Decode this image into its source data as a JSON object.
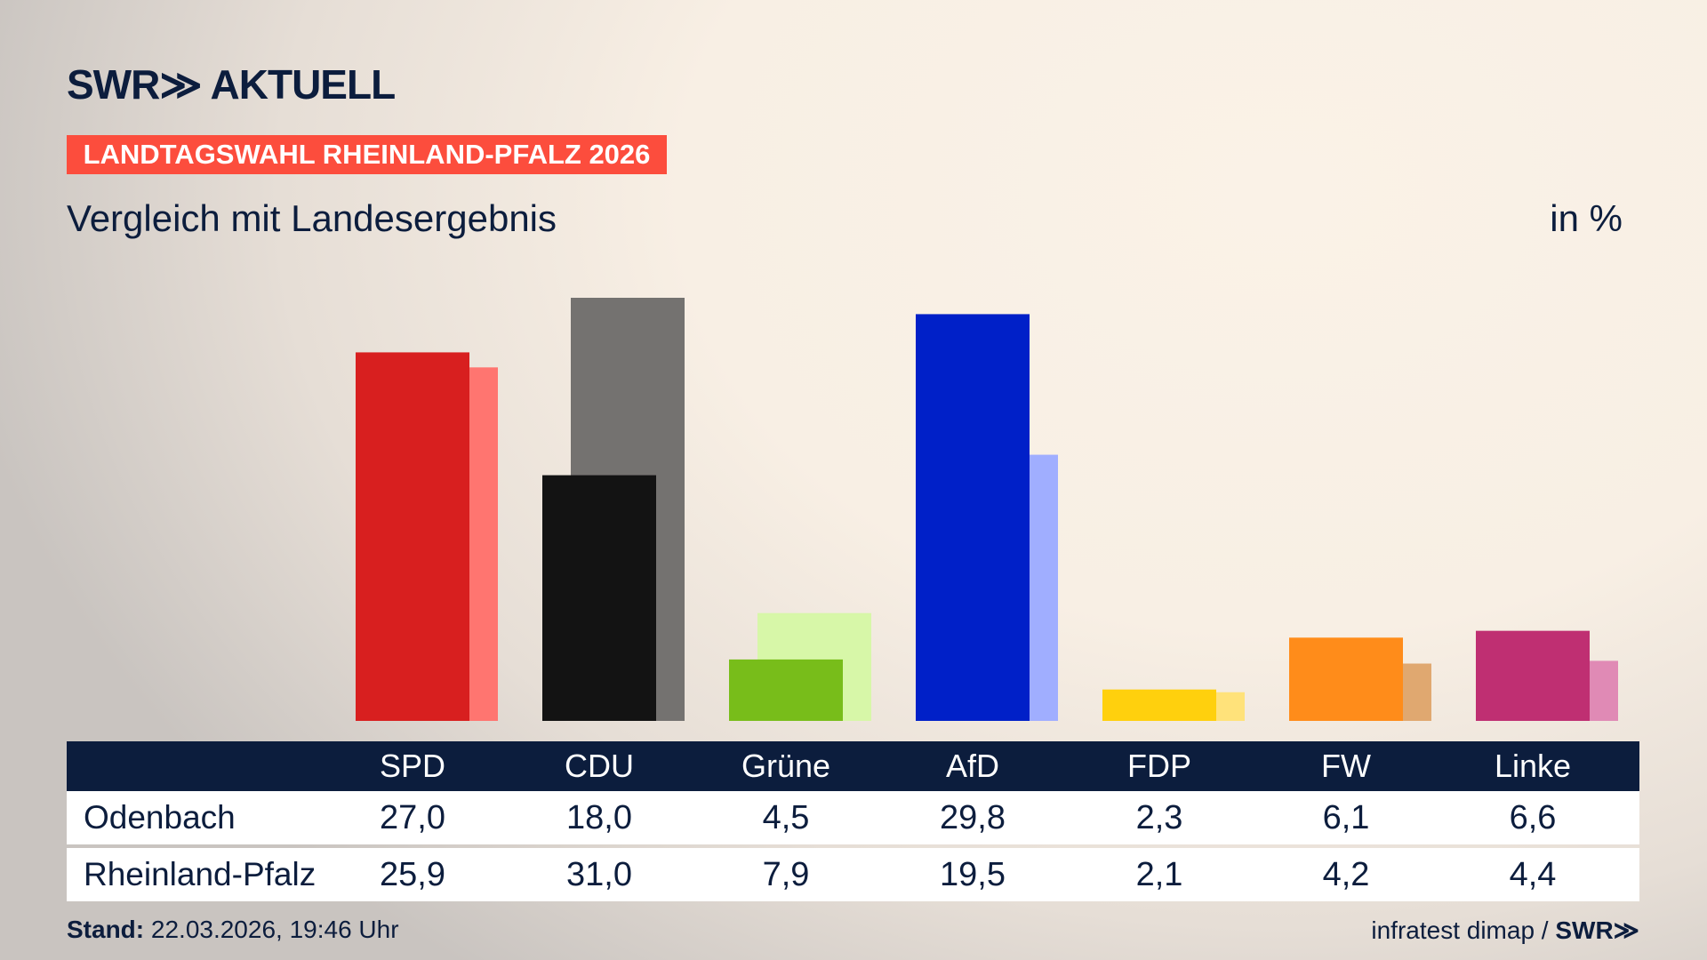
{
  "header": {
    "logo": "SWR≫ AKTUELL",
    "badge": "LANDTAGSWAHL RHEINLAND-PFALZ 2026",
    "subtitle": "Vergleich mit Landesergebnis",
    "unit": "in %"
  },
  "chart_data": {
    "type": "bar",
    "categories": [
      "SPD",
      "CDU",
      "Grüne",
      "AfD",
      "FDP",
      "FW",
      "Linke"
    ],
    "series": [
      {
        "name": "Odenbach",
        "values": [
          27.0,
          18.0,
          4.5,
          29.8,
          2.3,
          6.1,
          6.6
        ]
      },
      {
        "name": "Rheinland-Pfalz",
        "values": [
          25.9,
          31.0,
          7.9,
          19.5,
          2.1,
          4.2,
          4.4
        ]
      }
    ],
    "colors": [
      "#d81f1f",
      "#131313",
      "#78bd1a",
      "#0020c8",
      "#ffd00d",
      "#ff8c1a",
      "#bf2f72"
    ],
    "colors_light": [
      "#ff7570",
      "#747270",
      "#d7f7a8",
      "#a0aeff",
      "#ffe27a",
      "#e0a870",
      "#e08ab5"
    ],
    "ylim": [
      0,
      31
    ],
    "grid": false
  },
  "table": {
    "headers": [
      "SPD",
      "CDU",
      "Grüne",
      "AfD",
      "FDP",
      "FW",
      "Linke"
    ],
    "rows": [
      {
        "label": "Odenbach",
        "values": [
          "27,0",
          "18,0",
          "4,5",
          "29,8",
          "2,3",
          "6,1",
          "6,6"
        ]
      },
      {
        "label": "Rheinland-Pfalz",
        "values": [
          "25,9",
          "31,0",
          "7,9",
          "19,5",
          "2,1",
          "4,2",
          "4,4"
        ]
      }
    ]
  },
  "footer": {
    "stand_label": "Stand:",
    "stand_value": " 22.03.2026, 19:46 Uhr",
    "source": "infratest dimap / ",
    "source_logo": "SWR≫"
  }
}
